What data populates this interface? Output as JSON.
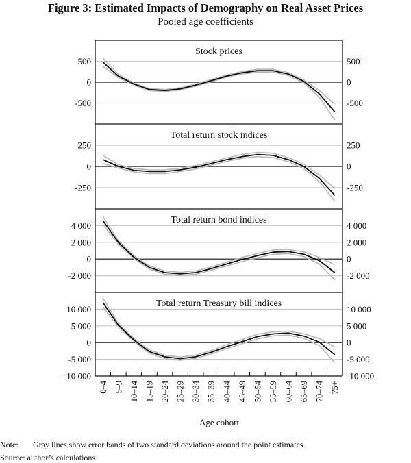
{
  "title": "Figure 3: Estimated Impacts of Demography on Real Asset Prices",
  "subtitle": "Pooled age coefficients",
  "note_label": "Note:",
  "note_text": "Gray lines show error bands of two standard deviations around the point estimates.",
  "source_text": "Source: author’s calculations",
  "colors": {
    "point_estimate": "#111111",
    "error_band": "#b8b8b8",
    "grid": "#c8c8c8"
  },
  "chart_data": [
    {
      "type": "line",
      "title": "Stock prices",
      "xlabel": "Age cohort",
      "categories": [
        "0–4",
        "5–9",
        "10–14",
        "15–19",
        "20–24",
        "25–29",
        "30–34",
        "35–39",
        "40–44",
        "45–49",
        "50–54",
        "55–59",
        "60–64",
        "65–69",
        "70–74",
        "75+"
      ],
      "ylim": [
        -1000,
        1000
      ],
      "yticks": [
        500,
        0,
        -500
      ],
      "ytick_labels": [
        "500",
        "0",
        "-500"
      ],
      "grid": true,
      "series": [
        {
          "role": "point estimate",
          "values": [
            478,
            145,
            -43,
            -175,
            -200,
            -160,
            -70,
            35,
            145,
            225,
            275,
            275,
            195,
            20,
            -280,
            -710
          ]
        },
        {
          "role": "upper band",
          "values": [
            580,
            180,
            -20,
            -150,
            -175,
            -135,
            -45,
            60,
            170,
            255,
            310,
            310,
            230,
            50,
            -200,
            -530
          ]
        },
        {
          "role": "lower band",
          "values": [
            380,
            110,
            -65,
            -200,
            -225,
            -185,
            -95,
            10,
            120,
            195,
            240,
            240,
            160,
            -10,
            -360,
            -900
          ]
        }
      ]
    },
    {
      "type": "line",
      "title": "Total return stock indices",
      "categories": [
        "0–4",
        "5–9",
        "10–14",
        "15–19",
        "20–24",
        "25–29",
        "30–34",
        "35–39",
        "40–44",
        "45–49",
        "50–54",
        "55–59",
        "60–64",
        "65–69",
        "70–74",
        "75+"
      ],
      "ylim": [
        -500,
        500
      ],
      "yticks": [
        250,
        0,
        -250
      ],
      "ytick_labels": [
        "250",
        "0",
        "-250"
      ],
      "grid": true,
      "series": [
        {
          "role": "point estimate",
          "values": [
            80,
            0,
            -45,
            -60,
            -60,
            -40,
            -10,
            35,
            80,
            115,
            140,
            130,
            80,
            0,
            -140,
            -340
          ]
        },
        {
          "role": "upper band",
          "values": [
            130,
            20,
            -25,
            -40,
            -40,
            -20,
            10,
            55,
            100,
            140,
            165,
            155,
            105,
            25,
            -100,
            -260
          ]
        },
        {
          "role": "lower band",
          "values": [
            35,
            -20,
            -65,
            -85,
            -85,
            -60,
            -30,
            15,
            60,
            95,
            115,
            105,
            55,
            -25,
            -180,
            -410
          ]
        }
      ]
    },
    {
      "type": "line",
      "title": "Total return bond indices",
      "categories": [
        "0–4",
        "5–9",
        "10–14",
        "15–19",
        "20–24",
        "25–29",
        "30–34",
        "35–39",
        "40–44",
        "45–49",
        "50–54",
        "55–59",
        "60–64",
        "65–69",
        "70–74",
        "75+"
      ],
      "ylim": [
        -4000,
        6000
      ],
      "yticks": [
        4000,
        2000,
        0,
        -2000
      ],
      "ytick_labels": [
        "4 000",
        "2 000",
        "0",
        "-2 000"
      ],
      "grid": true,
      "series": [
        {
          "role": "point estimate",
          "values": [
            4600,
            2000,
            220,
            -1000,
            -1620,
            -1780,
            -1620,
            -1150,
            -600,
            -50,
            410,
            820,
            900,
            575,
            -190,
            -1620
          ]
        },
        {
          "role": "upper band",
          "values": [
            5100,
            2200,
            400,
            -800,
            -1420,
            -1580,
            -1420,
            -950,
            -380,
            200,
            660,
            1080,
            1150,
            850,
            200,
            -700
          ]
        },
        {
          "role": "lower band",
          "values": [
            4100,
            1800,
            40,
            -1200,
            -1820,
            -1980,
            -1820,
            -1350,
            -820,
            -300,
            160,
            560,
            650,
            300,
            -600,
            -2500
          ]
        }
      ]
    },
    {
      "type": "line",
      "title": "Total return Treasury bill indices",
      "categories": [
        "0–4",
        "5–9",
        "10–14",
        "15–19",
        "20–24",
        "25–29",
        "30–34",
        "35–39",
        "40–44",
        "45–49",
        "50–54",
        "55–59",
        "60–64",
        "65–69",
        "70–74",
        "75+"
      ],
      "ylim": [
        -10000,
        15000
      ],
      "yticks": [
        10000,
        5000,
        0,
        -5000,
        -10000
      ],
      "ytick_labels": [
        "10 000",
        "5 000",
        "0",
        "-5 000",
        "-10 000"
      ],
      "grid": true,
      "series": [
        {
          "role": "point estimate",
          "values": [
            11960,
            5200,
            800,
            -2700,
            -4250,
            -4800,
            -4250,
            -2900,
            -1200,
            270,
            1800,
            2600,
            2850,
            1950,
            130,
            -3600
          ]
        },
        {
          "role": "upper band",
          "values": [
            13300,
            5700,
            1200,
            -2200,
            -3750,
            -4300,
            -3750,
            -2400,
            -600,
            900,
            2500,
            3200,
            3450,
            2650,
            1200,
            -1300
          ]
        },
        {
          "role": "lower band",
          "values": [
            10700,
            4700,
            400,
            -3200,
            -4750,
            -5300,
            -4750,
            -3400,
            -1800,
            -350,
            1100,
            2000,
            2250,
            1250,
            -900,
            -6000
          ]
        }
      ]
    }
  ]
}
